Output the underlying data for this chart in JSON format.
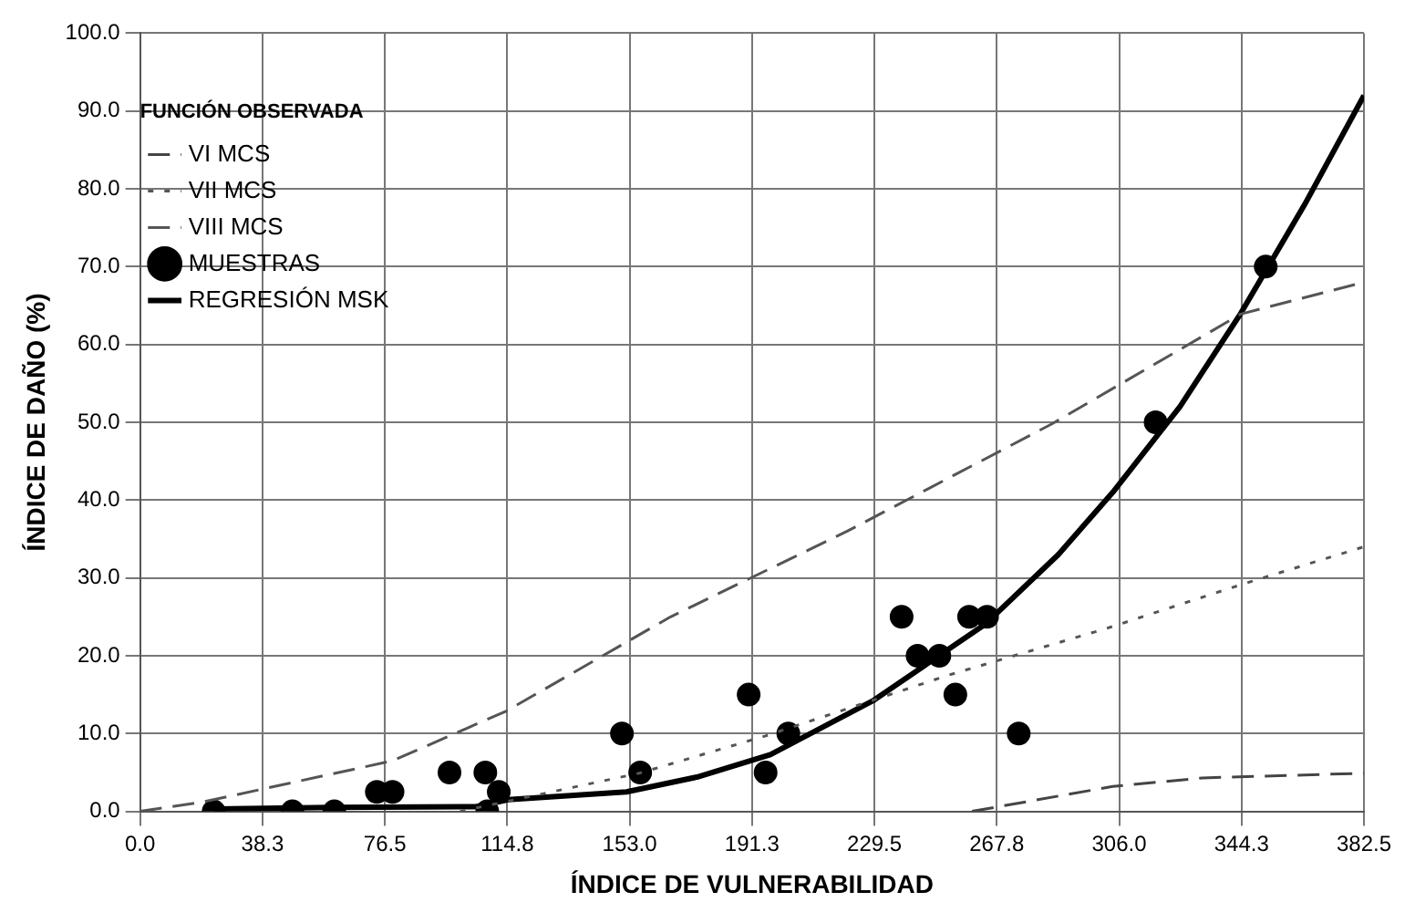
{
  "chart_data": {
    "type": "line",
    "xlabel": "ÍNDICE DE VULNERABILIDAD",
    "ylabel": "ÍNDICE DE DAÑO (%)",
    "legend_title": "FUNCIÓN OBSERVADA",
    "legend": "top left",
    "grid": true,
    "xlim": [
      0,
      382.5
    ],
    "xticks": [
      {
        "value": 0,
        "label": "0.0"
      },
      {
        "value": 38.25,
        "label": "38.3"
      },
      {
        "value": 76.5,
        "label": "76.5"
      },
      {
        "value": 114.75,
        "label": "114.8"
      },
      {
        "value": 153,
        "label": "153.0"
      },
      {
        "value": 191.25,
        "label": "191.3"
      },
      {
        "value": 229.5,
        "label": "229.5"
      },
      {
        "value": 267.75,
        "label": "267.8"
      },
      {
        "value": 306,
        "label": "306.0"
      },
      {
        "value": 344.25,
        "label": "344.3"
      },
      {
        "value": 382.5,
        "label": "382.5"
      }
    ],
    "ylim": [
      0,
      100
    ],
    "yticks": [
      {
        "value": 0,
        "label": "0.0"
      },
      {
        "value": 10,
        "label": "10.0"
      },
      {
        "value": 20,
        "label": "20.0"
      },
      {
        "value": 30,
        "label": "30.0"
      },
      {
        "value": 40,
        "label": "40.0"
      },
      {
        "value": 50,
        "label": "50.0"
      },
      {
        "value": 60,
        "label": "60.0"
      },
      {
        "value": 70,
        "label": "70.0"
      },
      {
        "value": 80,
        "label": "80.0"
      },
      {
        "value": 90,
        "label": "90.0"
      },
      {
        "value": 100,
        "label": "100.0"
      }
    ],
    "series": [
      {
        "name": "VI MCS",
        "type": "line",
        "color": "#444444",
        "line_style": "dashed",
        "marker": "none",
        "x": [
          260,
          304,
          332,
          382.5
        ],
        "values": [
          0,
          3.2,
          4.3,
          4.9
        ]
      },
      {
        "name": "VII MCS",
        "type": "line",
        "color": "#555555",
        "line_style": "dotted",
        "marker": "none",
        "x": [
          100,
          156,
          195.5,
          252.6,
          302,
          343.8,
          382.5
        ],
        "values": [
          0,
          4.9,
          9.7,
          17.5,
          23.5,
          29.1,
          34
        ]
      },
      {
        "name": "VIII MCS",
        "type": "line",
        "color": "#555555",
        "line_style": "dashed",
        "marker": "none",
        "x": [
          0,
          19.6,
          78.9,
          114.5,
          165.8,
          221,
          285,
          344,
          382.5
        ],
        "values": [
          0,
          1.2,
          6.5,
          12.9,
          25,
          36,
          49.8,
          63.9,
          68
        ]
      },
      {
        "name": "MUESTRAS",
        "type": "scatter",
        "color": "#000000",
        "marker": "circle",
        "x": [
          23,
          47.6,
          60.7,
          74,
          78.9,
          96.7,
          107.9,
          108.5,
          112.1,
          150.6,
          156.3,
          190.2,
          195.5,
          202.6,
          238,
          243,
          249.8,
          254.8,
          259.1,
          264.7,
          274.6,
          317.4,
          351.8
        ],
        "values": [
          0,
          0,
          0,
          2.5,
          2.5,
          5,
          5,
          0,
          2.5,
          10,
          5,
          15,
          5,
          10,
          25,
          20,
          20,
          15,
          25,
          25,
          10,
          50,
          70
        ]
      },
      {
        "name": "REGRESIÓN MSK",
        "type": "line",
        "color": "#000000",
        "line_style": "solid",
        "marker": "none",
        "x": [
          23,
          60,
          105,
          115,
          152,
          174,
          197,
          229,
          264,
          287,
          304,
          325,
          344,
          364,
          382.5
        ],
        "values": [
          0.3,
          0.5,
          0.6,
          1.5,
          2.5,
          4.4,
          7.3,
          14.2,
          24,
          33,
          41,
          52,
          64,
          78,
          92
        ]
      }
    ]
  }
}
